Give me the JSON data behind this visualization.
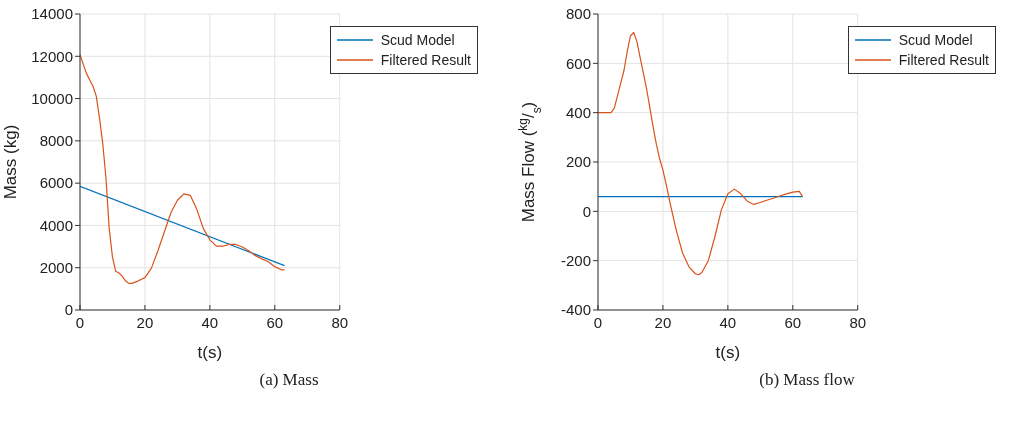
{
  "chart_data": [
    {
      "type": "line",
      "xlabel": "t(s)",
      "ylabel": "Mass (kg)",
      "annotations": [
        "(a) Mass"
      ],
      "grid": true,
      "legend": "top right",
      "marker": "none",
      "line_style": "solid",
      "xlim": [
        0,
        80
      ],
      "xticks": [
        0,
        20,
        40,
        60,
        80
      ],
      "ylim": [
        0,
        14000
      ],
      "yticks": [
        0,
        2000,
        4000,
        6000,
        8000,
        10000,
        12000,
        14000
      ],
      "series": [
        {
          "name": "Scud Model",
          "color": "#0072bd",
          "x": [
            0,
            63
          ],
          "values": [
            5850,
            2100
          ]
        },
        {
          "name": "Filtered Result",
          "color": "#d95319",
          "x": [
            0,
            2,
            4,
            5,
            6,
            7,
            8,
            9,
            10,
            11,
            12,
            13,
            14,
            15,
            16,
            18,
            20,
            22,
            24,
            26,
            28,
            30,
            32,
            34,
            36,
            38,
            40,
            42,
            44,
            46,
            48,
            50,
            52,
            54,
            56,
            58,
            60,
            62,
            63
          ],
          "values": [
            12080,
            11180,
            10580,
            10130,
            9090,
            7890,
            6240,
            3850,
            2500,
            1830,
            1750,
            1600,
            1380,
            1260,
            1260,
            1380,
            1530,
            1980,
            2800,
            3700,
            4600,
            5190,
            5490,
            5420,
            4750,
            3850,
            3320,
            3020,
            3020,
            3100,
            3100,
            2980,
            2800,
            2570,
            2420,
            2280,
            2050,
            1900,
            1900
          ]
        }
      ]
    },
    {
      "type": "line",
      "xlabel": "t(s)",
      "ylabel": "Mass Flow ($^{kg}$/$_{s}$)",
      "annotations": [
        "(b) Mass flow"
      ],
      "grid": true,
      "legend": "top right",
      "marker": "none",
      "line_style": "solid",
      "xlim": [
        0,
        80
      ],
      "xticks": [
        0,
        20,
        40,
        60,
        80
      ],
      "ylim": [
        -400,
        800
      ],
      "yticks": [
        -400,
        -200,
        0,
        200,
        400,
        600,
        800
      ],
      "series": [
        {
          "name": "Scud Model",
          "color": "#0072bd",
          "x": [
            0,
            63
          ],
          "values": [
            60,
            60
          ]
        },
        {
          "name": "Filtered Result",
          "color": "#d95319",
          "x": [
            0,
            2,
            4,
            5,
            6,
            7,
            8,
            9,
            10,
            11,
            12,
            13,
            14,
            15,
            16,
            17,
            18,
            19,
            20,
            21,
            22,
            24,
            26,
            28,
            30,
            31,
            32,
            34,
            36,
            38,
            40,
            42,
            44,
            46,
            48,
            50,
            52,
            54,
            56,
            58,
            60,
            62,
            63
          ],
          "values": [
            400,
            400,
            400,
            417,
            468,
            520,
            571,
            648,
            712,
            725,
            687,
            622,
            558,
            494,
            417,
            340,
            270,
            212,
            167,
            109,
            45,
            -71,
            -167,
            -225,
            -253,
            -257,
            -248,
            -199,
            -103,
            6,
            71,
            90,
            71,
            41,
            28,
            36,
            45,
            53,
            62,
            71,
            78,
            81,
            60
          ]
        }
      ]
    }
  ]
}
